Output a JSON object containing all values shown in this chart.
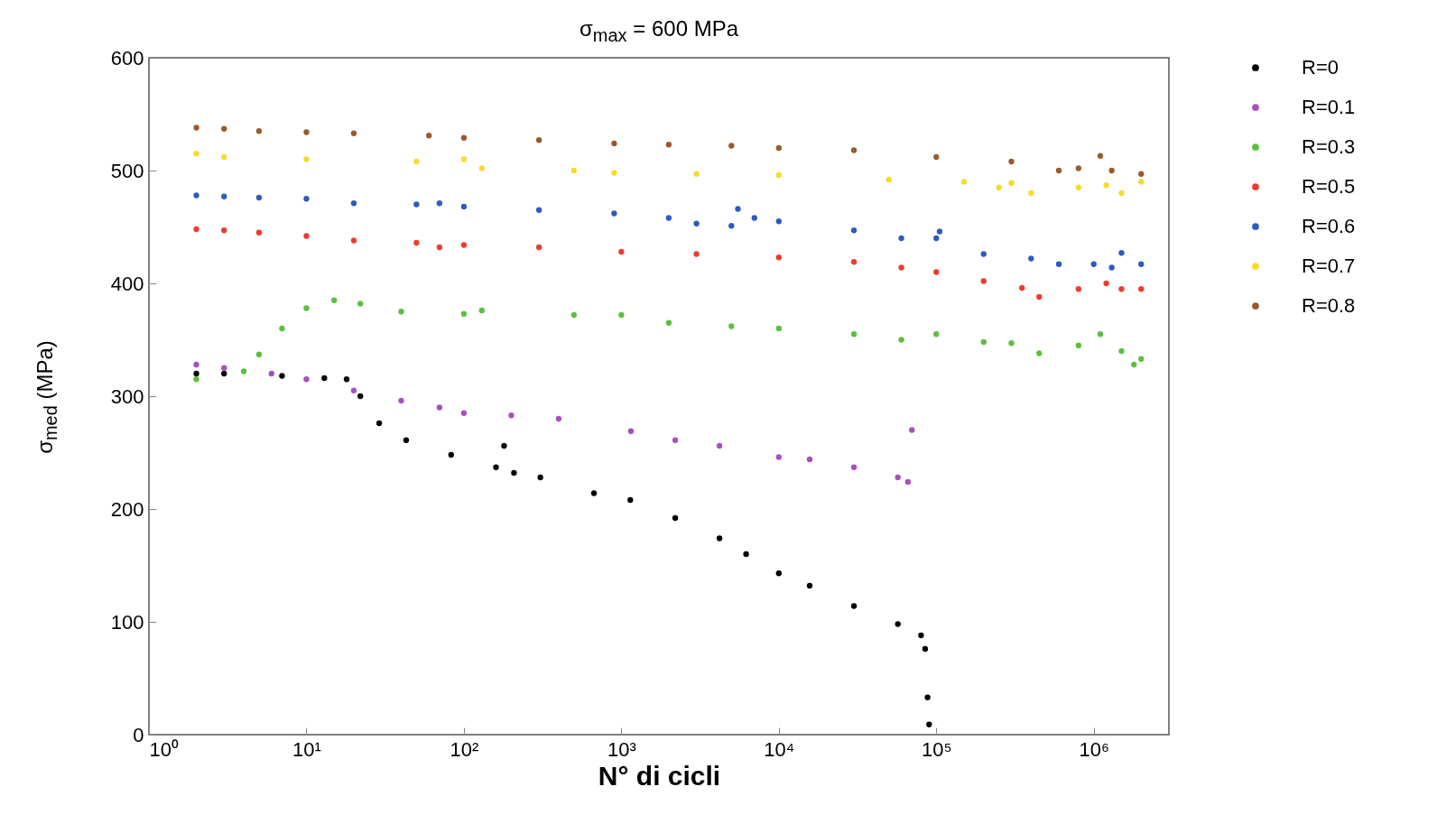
{
  "chart_data": {
    "type": "scatter",
    "title": "σ$_{max}$ = 600 MPa",
    "xlabel": "N° di cicli",
    "ylabel": "σ$_{med}$ (MPa)",
    "log": "x",
    "xlim": [
      1,
      3000000
    ],
    "xticks": [
      {
        "value": 1,
        "label": "10⁰"
      },
      {
        "value": 10,
        "label": "10¹"
      },
      {
        "value": 100,
        "label": "10²"
      },
      {
        "value": 1000,
        "label": "10³"
      },
      {
        "value": 10000,
        "label": "10⁴"
      },
      {
        "value": 100000,
        "label": "10⁵"
      },
      {
        "value": 1000000,
        "label": "10⁶"
      }
    ],
    "ylim": [
      0,
      600
    ],
    "yticks": [
      0,
      100,
      200,
      300,
      400,
      500,
      600
    ],
    "grid": false,
    "legend": "right",
    "marker": "circle",
    "series": [
      {
        "name": "R=0",
        "color": "#000000",
        "x": [
          2,
          3,
          7,
          13,
          18,
          22,
          29,
          43,
          83,
          160,
          180,
          208,
          306,
          670,
          1140,
          2200,
          4200,
          6200,
          10000,
          15700,
          30000,
          57000,
          80000,
          85000,
          88000,
          90000
        ],
        "values": [
          320,
          320,
          318,
          316,
          315,
          300,
          276,
          261,
          248,
          237,
          256,
          232,
          228,
          214,
          208,
          192,
          174,
          160,
          143,
          132,
          114,
          98,
          88,
          76,
          33,
          9
        ]
      },
      {
        "name": "R=0.1",
        "color": "#a64fc0",
        "x": [
          2,
          3,
          6,
          10,
          20,
          40,
          70,
          100,
          200,
          400,
          1150,
          2200,
          4200,
          10000,
          15700,
          30000,
          57000,
          66000,
          70000
        ],
        "values": [
          328,
          325,
          320,
          315,
          305,
          296,
          290,
          285,
          283,
          280,
          269,
          261,
          256,
          246,
          244,
          237,
          228,
          224,
          270
        ]
      },
      {
        "name": "R=0.3",
        "color": "#5bbf3d",
        "x": [
          2,
          4,
          5,
          7,
          10,
          15,
          22,
          40,
          100,
          130,
          500,
          1000,
          2000,
          5000,
          10000,
          30000,
          60000,
          100000,
          200000,
          300000,
          450000,
          800000,
          1100000,
          1500000,
          1800000,
          2000000
        ],
        "values": [
          315,
          322,
          337,
          360,
          378,
          385,
          382,
          375,
          373,
          376,
          372,
          372,
          365,
          362,
          360,
          355,
          350,
          355,
          348,
          347,
          338,
          345,
          355,
          340,
          328,
          333
        ]
      },
      {
        "name": "R=0.5",
        "color": "#f03a2e",
        "x": [
          2,
          3,
          5,
          10,
          20,
          50,
          70,
          100,
          300,
          1000,
          3000,
          10000,
          30000,
          60000,
          100000,
          200000,
          350000,
          450000,
          800000,
          1200000,
          1500000,
          2000000
        ],
        "values": [
          448,
          447,
          445,
          442,
          438,
          436,
          432,
          434,
          432,
          428,
          426,
          423,
          419,
          414,
          410,
          402,
          396,
          388,
          395,
          400,
          395,
          395
        ]
      },
      {
        "name": "R=0.6",
        "color": "#2e5bbf",
        "x": [
          2,
          3,
          5,
          10,
          20,
          50,
          70,
          100,
          300,
          900,
          2000,
          3000,
          5000,
          5500,
          7000,
          10000,
          30000,
          60000,
          100000,
          105000,
          200000,
          400000,
          600000,
          1000000,
          1300000,
          1500000,
          2000000
        ],
        "values": [
          478,
          477,
          476,
          475,
          471,
          470,
          471,
          468,
          465,
          462,
          458,
          453,
          451,
          466,
          458,
          455,
          447,
          440,
          440,
          446,
          426,
          422,
          417,
          417,
          414,
          427,
          417
        ]
      },
      {
        "name": "R=0.7",
        "color": "#f5dc2a",
        "x": [
          2,
          3,
          10,
          50,
          100,
          130,
          500,
          900,
          3000,
          10000,
          50000,
          150000,
          250000,
          300000,
          400000,
          800000,
          1200000,
          1500000,
          2000000
        ],
        "values": [
          515,
          512,
          510,
          508,
          510,
          502,
          500,
          498,
          497,
          496,
          492,
          490,
          485,
          489,
          480,
          485,
          487,
          480,
          490
        ]
      },
      {
        "name": "R=0.8",
        "color": "#9a5a2e",
        "x": [
          2,
          3,
          5,
          10,
          20,
          60,
          100,
          300,
          900,
          2000,
          5000,
          10000,
          30000,
          100000,
          300000,
          600000,
          800000,
          1100000,
          1300000,
          2000000
        ],
        "values": [
          538,
          537,
          535,
          534,
          533,
          531,
          529,
          527,
          524,
          523,
          522,
          520,
          518,
          512,
          508,
          500,
          502,
          513,
          500,
          497
        ]
      }
    ]
  }
}
